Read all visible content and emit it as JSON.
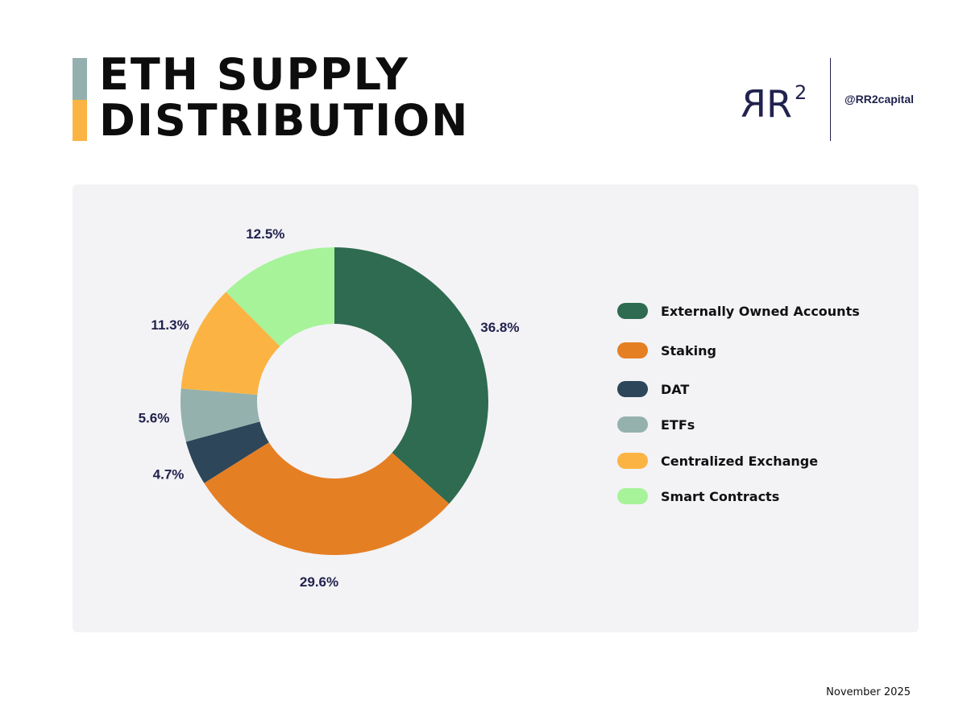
{
  "title_lines": [
    "ETH SUPPLY",
    "DISTRIBUTION"
  ],
  "brand": {
    "logo_text": "R",
    "logo_sup": "2",
    "handle": "@RR2capital"
  },
  "footer": {
    "date": "November 2025"
  },
  "colors": {
    "title_bar_top": "#94b0ae",
    "title_bar_bottom": "#fbb443",
    "panel": "#f3f3f6",
    "brand": "#22224e"
  },
  "chart_data": {
    "type": "pie",
    "style": "donut",
    "legend_position": "right",
    "categories": [
      "Externally Owned Accounts",
      "Staking",
      "DAT",
      "ETFs",
      "Centralized Exchange",
      "Smart Contracts"
    ],
    "values": [
      36.8,
      29.6,
      4.7,
      5.6,
      11.3,
      12.5
    ],
    "labels": [
      "36.8%",
      "29.6%",
      "4.7%",
      "5.6%",
      "11.3%",
      "12.5%"
    ],
    "colors": [
      "#2e6b50",
      "#e57f24",
      "#2d4659",
      "#95b1ae",
      "#fbb443",
      "#a7f39a"
    ]
  }
}
